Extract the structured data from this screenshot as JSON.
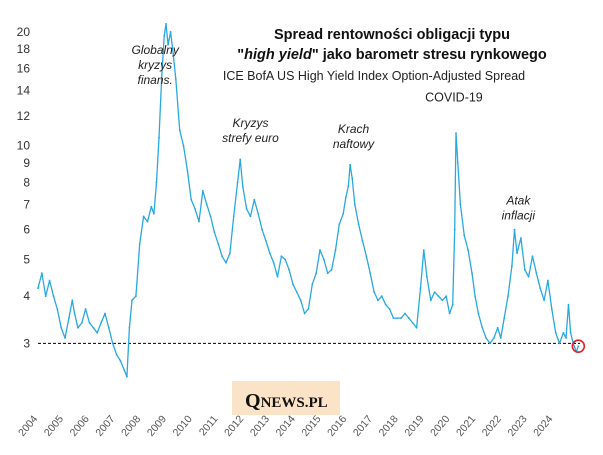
{
  "chart_data": {
    "type": "line",
    "title_line1": "Spread rentowności obligacji typu",
    "title_line2_pre": "\"",
    "title_line2_em": "high yield",
    "title_line2_post": "\" jako barometr stresu rynkowego",
    "subtitle": "ICE BofA US High Yield Index Option-Adjusted Spread",
    "y_scale": "log",
    "ylim": [
      2.0,
      21.5
    ],
    "xlim": [
      2004.0,
      2025.2
    ],
    "y_ticks": [
      "3",
      "4",
      "5",
      "6",
      "7",
      "8",
      "9",
      "10",
      "12",
      "14",
      "16",
      "18",
      "20"
    ],
    "y_tick_values": [
      3,
      4,
      5,
      6,
      7,
      8,
      9,
      10,
      12,
      14,
      16,
      18,
      20
    ],
    "x_ticks": [
      "2004",
      "2005",
      "2006",
      "2007",
      "2008",
      "2009",
      "2010",
      "2011",
      "2012",
      "2013",
      "2014",
      "2015",
      "2016",
      "2017",
      "2018",
      "2019",
      "2020",
      "2021",
      "2022",
      "2023",
      "2024"
    ],
    "x_tick_values": [
      2004,
      2005,
      2006,
      2007,
      2008,
      2009,
      2010,
      2011,
      2012,
      2013,
      2014,
      2015,
      2016,
      2017,
      2018,
      2019,
      2020,
      2021,
      2022,
      2023,
      2024
    ],
    "reference_line": {
      "value": 3.0,
      "style": "dashed"
    },
    "line_color": "#29a8e0",
    "marker_color": "#e0202a",
    "series": [
      {
        "points": [
          [
            2004.0,
            4.2
          ],
          [
            2004.15,
            4.6
          ],
          [
            2004.3,
            4.0
          ],
          [
            2004.45,
            4.4
          ],
          [
            2004.6,
            4.0
          ],
          [
            2004.75,
            3.7
          ],
          [
            2004.9,
            3.3
          ],
          [
            2005.05,
            3.1
          ],
          [
            2005.2,
            3.5
          ],
          [
            2005.33,
            3.9
          ],
          [
            2005.42,
            3.6
          ],
          [
            2005.55,
            3.3
          ],
          [
            2005.7,
            3.4
          ],
          [
            2005.85,
            3.7
          ],
          [
            2006.0,
            3.4
          ],
          [
            2006.15,
            3.3
          ],
          [
            2006.3,
            3.2
          ],
          [
            2006.45,
            3.4
          ],
          [
            2006.6,
            3.6
          ],
          [
            2006.75,
            3.3
          ],
          [
            2006.9,
            3.0
          ],
          [
            2007.05,
            2.8
          ],
          [
            2007.2,
            2.7
          ],
          [
            2007.35,
            2.55
          ],
          [
            2007.45,
            2.45
          ],
          [
            2007.55,
            3.3
          ],
          [
            2007.65,
            3.9
          ],
          [
            2007.8,
            4.0
          ],
          [
            2007.95,
            5.5
          ],
          [
            2008.1,
            6.5
          ],
          [
            2008.25,
            6.3
          ],
          [
            2008.4,
            6.9
          ],
          [
            2008.5,
            6.6
          ],
          [
            2008.6,
            8.0
          ],
          [
            2008.7,
            10.5
          ],
          [
            2008.8,
            15.0
          ],
          [
            2008.9,
            19.5
          ],
          [
            2008.97,
            21.0
          ],
          [
            2009.05,
            18.5
          ],
          [
            2009.15,
            20.0
          ],
          [
            2009.25,
            17.5
          ],
          [
            2009.35,
            15.0
          ],
          [
            2009.5,
            11.0
          ],
          [
            2009.65,
            10.0
          ],
          [
            2009.8,
            8.6
          ],
          [
            2009.95,
            7.2
          ],
          [
            2010.1,
            6.8
          ],
          [
            2010.25,
            6.3
          ],
          [
            2010.4,
            7.6
          ],
          [
            2010.55,
            7.0
          ],
          [
            2010.7,
            6.5
          ],
          [
            2010.85,
            5.9
          ],
          [
            2011.0,
            5.5
          ],
          [
            2011.15,
            5.1
          ],
          [
            2011.3,
            4.9
          ],
          [
            2011.45,
            5.2
          ],
          [
            2011.6,
            6.5
          ],
          [
            2011.75,
            8.0
          ],
          [
            2011.85,
            9.2
          ],
          [
            2011.95,
            7.8
          ],
          [
            2012.1,
            6.8
          ],
          [
            2012.25,
            6.5
          ],
          [
            2012.4,
            7.2
          ],
          [
            2012.55,
            6.6
          ],
          [
            2012.7,
            6.0
          ],
          [
            2012.85,
            5.6
          ],
          [
            2013.0,
            5.2
          ],
          [
            2013.15,
            4.9
          ],
          [
            2013.3,
            4.5
          ],
          [
            2013.45,
            5.1
          ],
          [
            2013.6,
            5.0
          ],
          [
            2013.75,
            4.7
          ],
          [
            2013.9,
            4.3
          ],
          [
            2014.05,
            4.1
          ],
          [
            2014.2,
            3.9
          ],
          [
            2014.35,
            3.6
          ],
          [
            2014.5,
            3.7
          ],
          [
            2014.65,
            4.3
          ],
          [
            2014.8,
            4.6
          ],
          [
            2014.95,
            5.3
          ],
          [
            2015.1,
            5.0
          ],
          [
            2015.25,
            4.6
          ],
          [
            2015.4,
            4.7
          ],
          [
            2015.55,
            5.3
          ],
          [
            2015.7,
            6.2
          ],
          [
            2015.85,
            6.6
          ],
          [
            2015.95,
            7.3
          ],
          [
            2016.05,
            7.8
          ],
          [
            2016.12,
            8.9
          ],
          [
            2016.2,
            8.2
          ],
          [
            2016.3,
            7.0
          ],
          [
            2016.45,
            6.2
          ],
          [
            2016.6,
            5.6
          ],
          [
            2016.75,
            5.1
          ],
          [
            2016.9,
            4.6
          ],
          [
            2017.05,
            4.1
          ],
          [
            2017.2,
            3.9
          ],
          [
            2017.35,
            4.0
          ],
          [
            2017.5,
            3.8
          ],
          [
            2017.65,
            3.7
          ],
          [
            2017.8,
            3.5
          ],
          [
            2017.95,
            3.5
          ],
          [
            2018.1,
            3.5
          ],
          [
            2018.25,
            3.6
          ],
          [
            2018.4,
            3.5
          ],
          [
            2018.55,
            3.4
          ],
          [
            2018.7,
            3.3
          ],
          [
            2018.85,
            4.2
          ],
          [
            2018.98,
            5.3
          ],
          [
            2019.1,
            4.5
          ],
          [
            2019.25,
            3.9
          ],
          [
            2019.4,
            4.1
          ],
          [
            2019.55,
            4.0
          ],
          [
            2019.7,
            3.9
          ],
          [
            2019.85,
            4.0
          ],
          [
            2019.98,
            3.6
          ],
          [
            2020.1,
            3.8
          ],
          [
            2020.18,
            6.0
          ],
          [
            2020.23,
            10.8
          ],
          [
            2020.3,
            9.0
          ],
          [
            2020.4,
            7.0
          ],
          [
            2020.55,
            5.8
          ],
          [
            2020.7,
            5.3
          ],
          [
            2020.85,
            4.6
          ],
          [
            2020.97,
            4.0
          ],
          [
            2021.1,
            3.6
          ],
          [
            2021.25,
            3.3
          ],
          [
            2021.4,
            3.1
          ],
          [
            2021.55,
            3.0
          ],
          [
            2021.7,
            3.1
          ],
          [
            2021.85,
            3.3
          ],
          [
            2021.97,
            3.1
          ],
          [
            2022.1,
            3.5
          ],
          [
            2022.25,
            4.0
          ],
          [
            2022.4,
            4.8
          ],
          [
            2022.5,
            6.0
          ],
          [
            2022.6,
            5.2
          ],
          [
            2022.75,
            5.7
          ],
          [
            2022.9,
            4.7
          ],
          [
            2023.05,
            4.5
          ],
          [
            2023.2,
            5.1
          ],
          [
            2023.35,
            4.6
          ],
          [
            2023.5,
            4.2
          ],
          [
            2023.65,
            3.9
          ],
          [
            2023.8,
            4.4
          ],
          [
            2023.95,
            3.7
          ],
          [
            2024.1,
            3.2
          ],
          [
            2024.25,
            3.0
          ],
          [
            2024.4,
            3.2
          ],
          [
            2024.5,
            3.1
          ],
          [
            2024.6,
            3.8
          ],
          [
            2024.68,
            3.2
          ],
          [
            2024.78,
            3.0
          ],
          [
            2024.9,
            2.85
          ],
          [
            2024.98,
            2.95
          ]
        ]
      }
    ],
    "last_point": [
      2024.98,
      2.95
    ],
    "annotations": [
      {
        "lines": [
          "Globalny",
          "kryzys",
          "finans."
        ],
        "x": 2008.55,
        "y": 17.5,
        "style": "italic"
      },
      {
        "lines": [
          "Kryzys",
          "strefy euro"
        ],
        "x": 2012.25,
        "y": 11.2,
        "style": "italic"
      },
      {
        "lines": [
          "Krach",
          "naftowy"
        ],
        "x": 2016.25,
        "y": 10.8,
        "style": "italic"
      },
      {
        "lines": [
          "COVID-19"
        ],
        "x": 2020.15,
        "y": 13.1,
        "style": "plain"
      },
      {
        "lines": [
          "Atak",
          "inflacji"
        ],
        "x": 2022.65,
        "y": 7.0,
        "style": "italic"
      }
    ]
  },
  "logo": {
    "q": "Q",
    "rest": "NEWS.PL"
  }
}
